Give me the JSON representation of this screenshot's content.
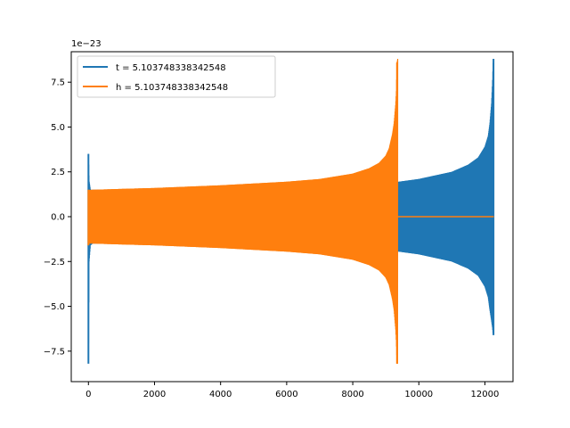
{
  "chart_data": {
    "type": "line",
    "title": "",
    "xlabel": "",
    "ylabel": "",
    "y_offset_label": "1e−23",
    "xlim": [
      -520,
      12850
    ],
    "ylim": [
      -9.2,
      9.2
    ],
    "x_ticks": [
      0,
      2000,
      4000,
      6000,
      8000,
      10000,
      12000
    ],
    "x_tick_labels": [
      "0",
      "2000",
      "4000",
      "6000",
      "8000",
      "10000",
      "12000"
    ],
    "y_ticks": [
      -7.5,
      -5.0,
      -2.5,
      0.0,
      2.5,
      5.0,
      7.5
    ],
    "y_tick_labels": [
      "−7.5",
      "−5.0",
      "−2.5",
      "0.0",
      "2.5",
      "5.0",
      "7.5"
    ],
    "grid": false,
    "legend": "top-left",
    "series": [
      {
        "name": "t = 5.103748338342548",
        "color": "#1f77b4",
        "x_start": 0,
        "x_end": 12270,
        "envelope_x": [
          0,
          20,
          60,
          120,
          1000,
          3000,
          6000,
          8000,
          9000,
          9400,
          10000,
          11000,
          11500,
          11800,
          12000,
          12100,
          12150,
          12200,
          12230,
          12250,
          12260,
          12270
        ],
        "envelope_upper": [
          3.5,
          2.0,
          1.5,
          1.5,
          1.5,
          1.55,
          1.65,
          1.75,
          1.85,
          1.95,
          2.1,
          2.5,
          2.9,
          3.3,
          3.9,
          4.5,
          5.2,
          6.3,
          7.5,
          8.7,
          8.8,
          0.0
        ],
        "envelope_lower": [
          -8.2,
          -2.5,
          -1.6,
          -1.5,
          -1.5,
          -1.55,
          -1.65,
          -1.75,
          -1.85,
          -1.95,
          -2.1,
          -2.5,
          -2.9,
          -3.3,
          -3.9,
          -4.5,
          -5.2,
          -5.8,
          -6.2,
          -6.6,
          -6.6,
          0.0
        ]
      },
      {
        "name": "h = 5.103748338342548",
        "color": "#ff7f0e",
        "x_start": 0,
        "x_end": 12270,
        "envelope_x": [
          0,
          20,
          60,
          120,
          1000,
          2000,
          4000,
          6000,
          7000,
          8000,
          8500,
          8800,
          9000,
          9100,
          9200,
          9250,
          9300,
          9320,
          9340,
          9360
        ],
        "envelope_upper": [
          1.5,
          1.5,
          1.5,
          1.5,
          1.55,
          1.6,
          1.75,
          1.95,
          2.1,
          2.4,
          2.7,
          3.0,
          3.4,
          3.8,
          4.6,
          5.2,
          6.3,
          7.0,
          8.6,
          8.8
        ],
        "envelope_lower": [
          -1.6,
          -1.5,
          -1.5,
          -1.5,
          -1.55,
          -1.6,
          -1.75,
          -1.95,
          -2.1,
          -2.4,
          -2.7,
          -3.0,
          -3.4,
          -3.8,
          -4.6,
          -5.2,
          -6.3,
          -7.0,
          -8.2,
          -8.2
        ],
        "tail_x": [
          9360,
          12270
        ],
        "tail_value": 0.0
      }
    ]
  }
}
